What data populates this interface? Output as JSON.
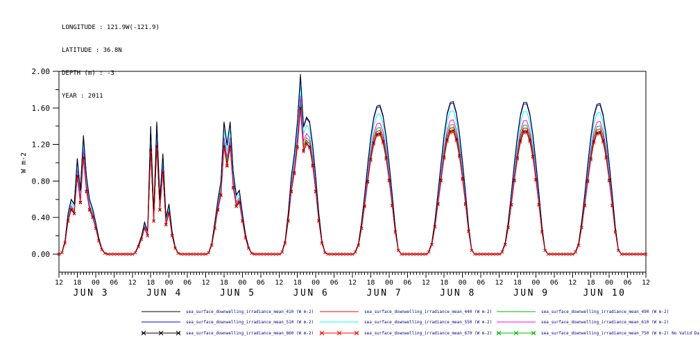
{
  "header": {
    "longitude": "LONGITUDE : 121.9W(-121.9)",
    "latitude": "LATITUDE : 36.8N",
    "depth": "DEPTH (m) : -3",
    "year": "YEAR : 2011"
  },
  "chart_data": {
    "type": "line",
    "title": "",
    "xlabel": "",
    "ylabel": "W m-2",
    "ylim": [
      -0.2,
      2.0
    ],
    "ytick_labels": [
      "0.00",
      "0.40",
      "0.80",
      "1.20",
      "1.60",
      "2.00"
    ],
    "ytick_values": [
      0.0,
      0.4,
      0.8,
      1.2,
      1.6,
      2.0
    ],
    "ytick_minor_step": 0.2,
    "x_hours_total": 192,
    "x_start": "JUN 2 12:00",
    "x_end": "JUN 10 12:00",
    "x_major_tick_hours": 6,
    "x_minor_tick_hours": 1,
    "x_tick_label_cycle": [
      "12",
      "18",
      "00",
      "06"
    ],
    "day_labels": [
      "JUN 3",
      "JUN 4",
      "JUN 5",
      "JUN 6",
      "JUN 7",
      "JUN 8",
      "JUN 9",
      "JUN 10"
    ],
    "grid": false,
    "legend_position": "bottom",
    "legend_text_color": "#000080",
    "axis_color": "#000000",
    "days": [
      {
        "date": "JUN 2",
        "first_hour_utc": 13,
        "hourly_base": [
          0.02,
          0.15,
          0.45,
          0.6,
          0.55,
          1.05,
          0.7,
          1.3,
          0.85,
          0.6,
          0.5,
          0.35,
          0.18,
          0.06,
          0.01,
          0
        ]
      },
      {
        "date": "JUN 3",
        "first_hour_utc": 13,
        "hourly_base": [
          0.02,
          0.1,
          0.2,
          0.35,
          0.25,
          1.4,
          0.45,
          1.45,
          0.6,
          1.1,
          0.4,
          0.55,
          0.25,
          0.08,
          0.01,
          0
        ]
      },
      {
        "date": "JUN 4",
        "first_hour_utc": 13,
        "hourly_base": [
          0.02,
          0.12,
          0.35,
          0.6,
          0.8,
          1.45,
          1.2,
          1.45,
          0.9,
          0.65,
          0.7,
          0.45,
          0.22,
          0.08,
          0.01,
          0
        ]
      },
      {
        "date": "JUN 5",
        "first_hour_utc": 13,
        "hourly_base": [
          0.03,
          0.15,
          0.45,
          0.85,
          1.1,
          1.45,
          1.97,
          1.4,
          1.5,
          1.45,
          1.2,
          0.85,
          0.45,
          0.15,
          0.02,
          0
        ]
      },
      {
        "date": "JUN 6",
        "first_hour_utc": 13,
        "hourly_base": [
          0.03,
          0.12,
          0.35,
          0.65,
          0.98,
          1.28,
          1.5,
          1.62,
          1.63,
          1.52,
          1.3,
          1.0,
          0.66,
          0.3,
          0.05,
          0
        ]
      },
      {
        "date": "JUN 7",
        "first_hour_utc": 13,
        "hourly_base": [
          0.03,
          0.13,
          0.37,
          0.68,
          1.0,
          1.31,
          1.54,
          1.66,
          1.67,
          1.55,
          1.33,
          1.02,
          0.68,
          0.31,
          0.05,
          0
        ]
      },
      {
        "date": "JUN 8",
        "first_hour_utc": 13,
        "hourly_base": [
          0.03,
          0.13,
          0.36,
          0.67,
          1.0,
          1.3,
          1.53,
          1.66,
          1.66,
          1.54,
          1.32,
          1.01,
          0.67,
          0.3,
          0.05,
          0
        ]
      },
      {
        "date": "JUN 9",
        "first_hour_utc": 13,
        "hourly_base": [
          0.03,
          0.12,
          0.36,
          0.66,
          0.99,
          1.29,
          1.52,
          1.64,
          1.65,
          1.53,
          1.31,
          1.0,
          0.66,
          0.3,
          0.05,
          0
        ]
      }
    ],
    "series": [
      {
        "label": "sea_surface_downwelling_irradiance_mean_410 (W m-2)",
        "color": "#000000",
        "style": "line",
        "scale": 1.0,
        "note": ""
      },
      {
        "label": "sea_surface_downwelling_irradiance_mean_440 (W m-2)",
        "color": "#ff0000",
        "style": "line",
        "scale": 0.83,
        "note": ""
      },
      {
        "label": "sea_surface_downwelling_irradiance_mean_490 (W m-2)",
        "color": "#00bb00",
        "style": "line",
        "scale": 0.85,
        "note": ""
      },
      {
        "label": "sea_surface_downwelling_irradiance_mean_510 (W m-2)",
        "color": "#0000ff",
        "style": "line",
        "scale": 0.99,
        "note": ""
      },
      {
        "label": "sea_surface_downwelling_irradiance_mean_550 (W m-2)",
        "color": "#00ffff",
        "style": "line",
        "scale": 0.94,
        "note": ""
      },
      {
        "label": "sea_surface_downwelling_irradiance_mean_610 (W m-2)",
        "color": "#ff00ff",
        "style": "line",
        "scale": 0.88,
        "note": ""
      },
      {
        "label": "sea_surface_downwelling_irradiance_mean_860 (W m-2)",
        "color": "#000000",
        "style": "line+marker",
        "scale": 0.81,
        "note": ""
      },
      {
        "label": "sea_surface_downwelling_irradiance_mean_670 (W m-2)",
        "color": "#ff0000",
        "style": "line+marker",
        "scale": 0.8,
        "note": ""
      },
      {
        "label": "sea_surface_downwelling_irradiance_mean_750 (W m-2)",
        "color": "#00bb00",
        "style": "line+marker",
        "scale": null,
        "note": "No Valid Data"
      }
    ]
  }
}
